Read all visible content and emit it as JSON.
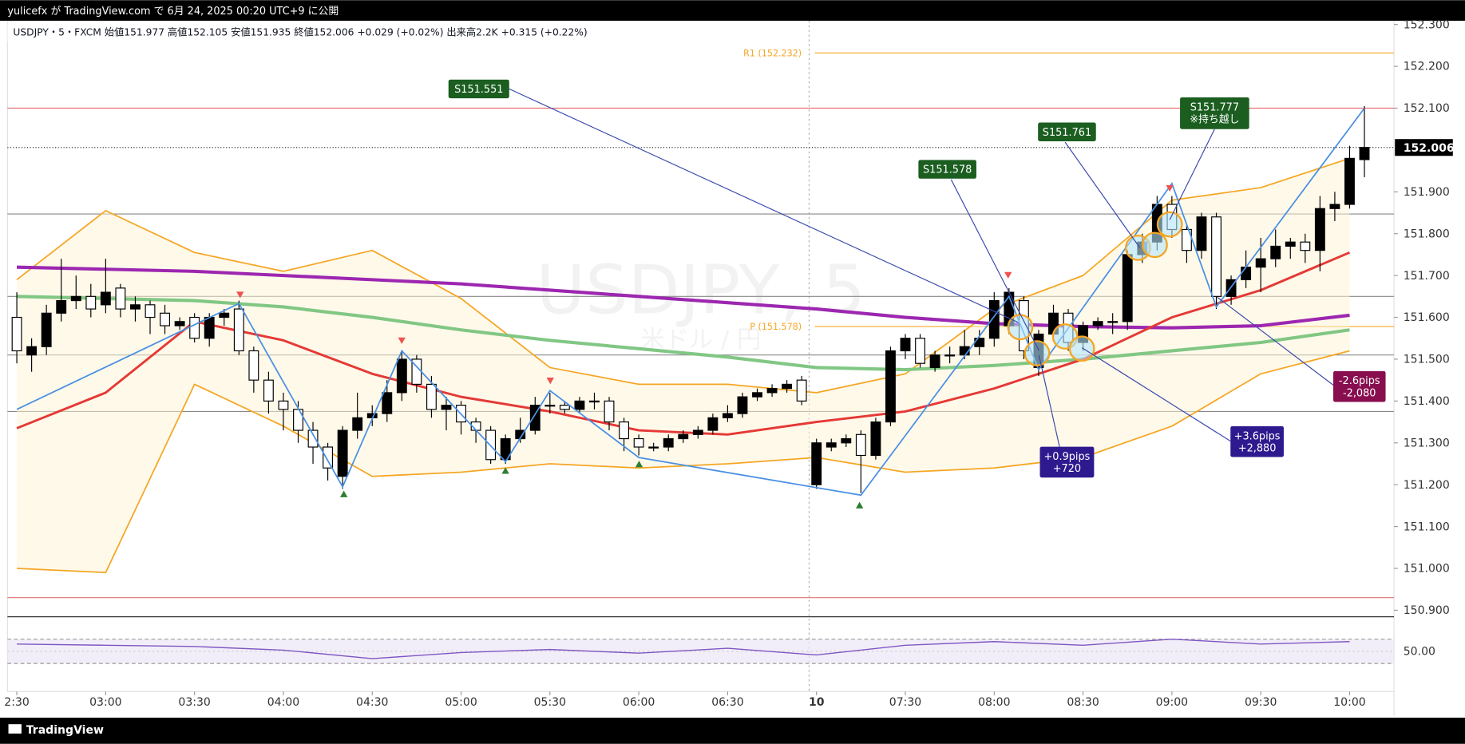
{
  "header": {
    "published": "yulicefx が TradingView.com で 6月 24, 2025 00:20 UTC+9 に公開",
    "brand": "TradingView"
  },
  "chart_data": {
    "type": "candlestick",
    "title": "USDJPY・5・FXCM 始値151.977 高値152.105 安値151.935 終値152.006 +0.029 (+0.02%) 出来高2.2K +0.315 (+0.22%)",
    "watermark": "USDJPY, 5",
    "watermark_sub": "米ドル / 円",
    "open": [
      151.6,
      151.51,
      151.53,
      151.61,
      151.64,
      151.65,
      151.63,
      151.67,
      151.62,
      151.63,
      151.61,
      151.58,
      151.6,
      151.55,
      151.6,
      151.62,
      151.52,
      151.45,
      151.4,
      151.38,
      151.33,
      151.29,
      151.22,
      151.33,
      151.36,
      151.37,
      151.42,
      151.5,
      151.44,
      151.38,
      151.39,
      151.35,
      151.33,
      151.26,
      151.31,
      151.33,
      151.39,
      151.39,
      151.38,
      151.4,
      151.4,
      151.35,
      151.31,
      151.29,
      151.29,
      151.31,
      151.32,
      151.33,
      151.36,
      151.37,
      151.41,
      151.42,
      151.43,
      151.45,
      151.2,
      151.29,
      151.3,
      151.32,
      151.27,
      151.35,
      151.52,
      151.55,
      151.48,
      151.51,
      151.51,
      151.53,
      151.55,
      151.58,
      151.64,
      151.48,
      151.56,
      151.61,
      151.54,
      151.58,
      151.59,
      151.59,
      151.75,
      151.78,
      151.87,
      151.81,
      151.76,
      151.84,
      151.65,
      151.69,
      151.72,
      151.74,
      151.77,
      151.78,
      151.76,
      151.86,
      151.87,
      151.977
    ],
    "high": [
      151.66,
      151.55,
      151.63,
      151.74,
      151.7,
      151.68,
      151.74,
      151.68,
      151.65,
      151.64,
      151.63,
      151.6,
      151.61,
      151.61,
      151.62,
      151.64,
      151.53,
      151.47,
      151.42,
      151.4,
      151.35,
      151.3,
      151.34,
      151.42,
      151.39,
      151.45,
      151.52,
      151.51,
      151.46,
      151.41,
      151.4,
      151.36,
      151.34,
      151.32,
      151.36,
      151.41,
      151.42,
      151.4,
      151.41,
      151.42,
      151.41,
      151.36,
      151.32,
      151.3,
      151.32,
      151.33,
      151.34,
      151.37,
      151.39,
      151.42,
      151.43,
      151.44,
      151.45,
      151.46,
      151.31,
      151.31,
      151.32,
      151.33,
      151.36,
      151.53,
      151.56,
      151.56,
      151.52,
      151.53,
      151.57,
      151.57,
      151.66,
      151.67,
      151.65,
      151.57,
      151.63,
      151.62,
      151.59,
      151.6,
      151.61,
      151.76,
      151.8,
      151.89,
      151.89,
      151.82,
      151.85,
      151.85,
      151.7,
      151.76,
      151.79,
      151.81,
      151.79,
      151.8,
      151.89,
      151.9,
      152.01,
      152.105
    ],
    "low": [
      151.49,
      151.47,
      151.51,
      151.59,
      151.62,
      151.6,
      151.61,
      151.6,
      151.59,
      151.56,
      151.56,
      151.57,
      151.54,
      151.53,
      151.58,
      151.51,
      151.42,
      151.37,
      151.33,
      151.3,
      151.25,
      151.21,
      151.19,
      151.31,
      151.34,
      151.35,
      151.4,
      151.42,
      151.36,
      151.33,
      151.32,
      151.3,
      151.25,
      151.25,
      151.3,
      151.32,
      151.37,
      151.37,
      151.37,
      151.38,
      151.33,
      151.28,
      151.27,
      151.28,
      151.28,
      151.3,
      151.31,
      151.32,
      151.35,
      151.36,
      151.4,
      151.41,
      151.42,
      151.39,
      151.19,
      151.28,
      151.29,
      151.18,
      151.26,
      151.34,
      151.5,
      151.48,
      151.47,
      151.49,
      151.5,
      151.51,
      151.53,
      151.56,
      151.5,
      151.46,
      151.55,
      151.52,
      151.52,
      151.57,
      151.56,
      151.57,
      151.73,
      151.76,
      151.79,
      151.73,
      151.74,
      151.62,
      151.63,
      151.67,
      151.66,
      151.72,
      151.74,
      151.73,
      151.71,
      151.83,
      151.86,
      151.935
    ],
    "close": [
      151.52,
      151.53,
      151.61,
      151.64,
      151.65,
      151.62,
      151.66,
      151.62,
      151.63,
      151.6,
      151.58,
      151.59,
      151.55,
      151.6,
      151.61,
      151.52,
      151.45,
      151.4,
      151.38,
      151.33,
      151.29,
      151.24,
      151.33,
      151.36,
      151.37,
      151.42,
      151.5,
      151.44,
      151.38,
      151.39,
      151.35,
      151.33,
      151.26,
      151.31,
      151.33,
      151.39,
      151.39,
      151.38,
      151.4,
      151.4,
      151.35,
      151.31,
      151.29,
      151.29,
      151.31,
      151.32,
      151.33,
      151.36,
      151.37,
      151.41,
      151.42,
      151.43,
      151.44,
      151.4,
      151.3,
      151.3,
      151.31,
      151.27,
      151.35,
      151.52,
      151.55,
      151.49,
      151.51,
      151.51,
      151.53,
      151.55,
      151.64,
      151.66,
      151.52,
      151.56,
      151.61,
      151.54,
      151.58,
      151.59,
      151.59,
      151.75,
      151.78,
      151.87,
      151.81,
      151.76,
      151.84,
      151.65,
      151.69,
      151.72,
      151.74,
      151.77,
      151.78,
      151.76,
      151.86,
      151.87,
      151.98,
      152.006
    ],
    "up_color": "#000000",
    "down_color": "#ffffff",
    "xticks": [
      {
        "value": 0,
        "label": "2:30"
      },
      {
        "value": 6,
        "label": "03:00"
      },
      {
        "value": 12,
        "label": "03:30"
      },
      {
        "value": 18,
        "label": "04:00"
      },
      {
        "value": 24,
        "label": "04:30"
      },
      {
        "value": 30,
        "label": "05:00"
      },
      {
        "value": 36,
        "label": "05:30"
      },
      {
        "value": 42,
        "label": "06:00"
      },
      {
        "value": 48,
        "label": "06:30"
      },
      {
        "value": 54,
        "label": "10"
      },
      {
        "value": 60,
        "label": "07:30"
      },
      {
        "value": 66,
        "label": "08:00"
      },
      {
        "value": 72,
        "label": "08:30"
      },
      {
        "value": 78,
        "label": "09:00"
      },
      {
        "value": 84,
        "label": "09:30"
      },
      {
        "value": 90,
        "label": "10:00"
      }
    ],
    "ylim": [
      150.9,
      152.3
    ],
    "yticks": [
      {
        "value": 152.3,
        "label": "152.300"
      },
      {
        "value": 152.2,
        "label": "152.200"
      },
      {
        "value": 152.1,
        "label": "152.100"
      },
      {
        "value": 151.9,
        "label": "151.900"
      },
      {
        "value": 151.8,
        "label": "151.800"
      },
      {
        "value": 151.7,
        "label": "151.700"
      },
      {
        "value": 151.6,
        "label": "151.600"
      },
      {
        "value": 151.5,
        "label": "151.500"
      },
      {
        "value": 151.4,
        "label": "151.400"
      },
      {
        "value": 151.3,
        "label": "151.300"
      },
      {
        "value": 151.2,
        "label": "151.200"
      },
      {
        "value": 151.1,
        "label": "151.100"
      },
      {
        "value": 151.0,
        "label": "151.000"
      },
      {
        "value": 150.9,
        "label": "150.900"
      }
    ],
    "last_price": {
      "value": 152.006,
      "label": "152.006",
      "color": "#000000"
    },
    "line_x": [
      0,
      6,
      12,
      18,
      24,
      30,
      36,
      42,
      48,
      54,
      60,
      66,
      72,
      78,
      84,
      90
    ],
    "series": [
      {
        "color": "#f5a623",
        "values": [
          151.69,
          151.855,
          151.755,
          151.71,
          151.76,
          151.645,
          151.48,
          151.44,
          151.44,
          151.42,
          151.465,
          151.62,
          151.7,
          151.88,
          151.91,
          151.98
        ]
      },
      {
        "color": "#f5a623",
        "values": [
          151.0,
          150.99,
          151.44,
          151.34,
          151.22,
          151.23,
          151.25,
          151.24,
          151.25,
          151.265,
          151.23,
          151.24,
          151.265,
          151.34,
          151.465,
          151.52
        ]
      },
      {
        "color": "#9c27b0",
        "values": [
          151.72,
          151.715,
          151.71,
          151.7,
          151.69,
          151.68,
          151.665,
          151.65,
          151.635,
          151.62,
          151.6,
          151.585,
          151.578,
          151.575,
          151.58,
          151.605
        ]
      },
      {
        "color": "#81c784",
        "values": [
          151.65,
          151.645,
          151.64,
          151.625,
          151.6,
          151.57,
          151.545,
          151.525,
          151.505,
          151.48,
          151.475,
          151.485,
          151.5,
          151.52,
          151.54,
          151.57
        ]
      },
      {
        "color": "#e53935",
        "values": [
          151.335,
          151.42,
          151.59,
          151.545,
          151.465,
          151.41,
          151.375,
          151.33,
          151.32,
          151.35,
          151.375,
          151.43,
          151.5,
          151.6,
          151.665,
          151.755
        ]
      }
    ],
    "zigzag": {
      "color": "#4a90e2",
      "x": [
        0,
        15,
        22,
        26,
        33,
        36,
        42,
        57,
        67,
        69,
        78,
        81,
        91
      ],
      "values": [
        151.38,
        151.633,
        151.195,
        151.52,
        151.255,
        151.425,
        151.265,
        151.175,
        151.65,
        151.475,
        151.92,
        151.625,
        152.1
      ]
    },
    "hlines": [
      {
        "value": 152.1,
        "color": "#e57373"
      },
      {
        "value": 150.93,
        "color": "#e57373"
      },
      {
        "value": 151.847,
        "color": "#888888"
      },
      {
        "value": 151.65,
        "color": "#888888"
      },
      {
        "value": 151.51,
        "color": "#888888"
      },
      {
        "value": 151.375,
        "color": "#888888"
      }
    ],
    "levels": [
      {
        "label": "R1 (152.232)",
        "value": 152.232,
        "color": "#f5a623"
      },
      {
        "label": "P (151.578)",
        "value": 151.578,
        "color": "#f5a623"
      }
    ],
    "annotations": [
      {
        "lines": [
          "S151.551"
        ],
        "color": "#1b5e20"
      },
      {
        "lines": [
          "S151.578"
        ],
        "color": "#1b5e20"
      },
      {
        "lines": [
          "S151.761"
        ],
        "color": "#1b5e20"
      },
      {
        "lines": [
          "S151.777",
          "※持ち越し"
        ],
        "color": "#1b5e20"
      },
      {
        "lines": [
          "+0.9pips",
          "+720"
        ],
        "color": "#2e1a8e"
      },
      {
        "lines": [
          "+3.6pips",
          "+2,880"
        ],
        "color": "#2e1a8e"
      },
      {
        "lines": [
          "-2.6pips",
          "-2,080"
        ],
        "color": "#880e4f"
      }
    ],
    "rsi": {
      "ylim": [
        0,
        100
      ],
      "yticks": [
        {
          "value": 50,
          "label": "50.00"
        }
      ],
      "bands": [
        70,
        30
      ],
      "color": "#7e57c2",
      "values": [
        62,
        60,
        58,
        52,
        38,
        48,
        53,
        47,
        55,
        44,
        60,
        66,
        60,
        70,
        62,
        66
      ]
    }
  }
}
